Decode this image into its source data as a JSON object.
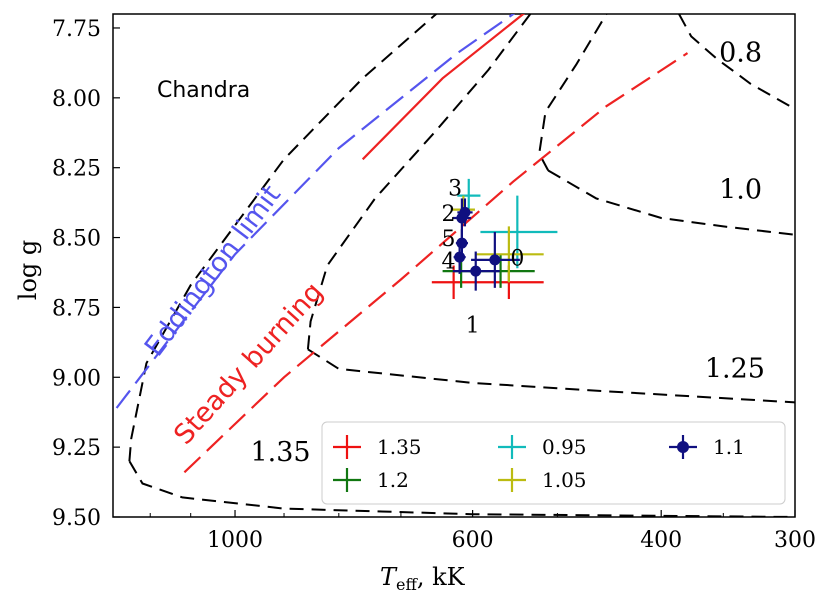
{
  "chart_data": {
    "type": "scatter",
    "title": "Chandra",
    "xlabel_main": "T",
    "xlabel_sub": "eff",
    "xlabel_unit": ", kK",
    "ylabel": "log g",
    "x_scale": "log-reversed",
    "xlim": [
      1300,
      300
    ],
    "ylim": [
      9.5,
      7.7
    ],
    "xticks": [
      1000,
      600,
      400,
      300
    ],
    "xtick_labels": [
      "1000",
      "600",
      "400",
      "300"
    ],
    "yticks": [
      7.75,
      8.0,
      8.25,
      8.5,
      8.75,
      9.0,
      9.25,
      9.5
    ],
    "ytick_labels": [
      "7.75",
      "8.00",
      "8.25",
      "8.50",
      "8.75",
      "9.00",
      "9.25",
      "9.50"
    ],
    "lines": [
      {
        "name": "Eddington limit",
        "color": "#5555ee",
        "dash": "long",
        "label": "Eddington limit",
        "points": [
          [
            1290,
            9.11
          ],
          [
            1150,
            8.86
          ],
          [
            1000,
            8.56
          ],
          [
            800,
            8.18
          ],
          [
            620,
            7.84
          ],
          [
            545,
            7.69
          ]
        ]
      },
      {
        "name": "Steady burning",
        "color": "#ee2222",
        "dash": "long",
        "label": "Steady burning",
        "points": [
          [
            1115,
            9.34
          ],
          [
            900,
            9.0
          ],
          [
            700,
            8.65
          ],
          [
            550,
            8.3
          ],
          [
            450,
            8.03
          ],
          [
            378,
            7.84
          ]
        ]
      },
      {
        "name": "Steady burning upper",
        "color": "#ee2222",
        "dash": "solid",
        "label": "",
        "points": [
          [
            760,
            8.22
          ],
          [
            640,
            7.93
          ],
          [
            530,
            7.68
          ]
        ]
      }
    ],
    "contours": [
      {
        "label": "1.35",
        "points": [
          [
            1255,
            9.3
          ],
          [
            1250,
            9.22
          ],
          [
            1210,
            8.95
          ],
          [
            1100,
            8.67
          ],
          [
            900,
            8.22
          ],
          [
            760,
            7.93
          ],
          [
            640,
            7.68
          ]
        ]
      },
      {
        "label": "1.35-lower",
        "points": [
          [
            1255,
            9.3
          ],
          [
            1220,
            9.38
          ],
          [
            1120,
            9.43
          ],
          [
            900,
            9.47
          ],
          [
            600,
            9.49
          ],
          [
            300,
            9.5
          ]
        ]
      },
      {
        "label": "1.25",
        "points": [
          [
            855,
            8.9
          ],
          [
            850,
            8.8
          ],
          [
            820,
            8.6
          ],
          [
            740,
            8.36
          ],
          [
            650,
            8.12
          ],
          [
            580,
            7.9
          ],
          [
            530,
            7.7
          ]
        ]
      },
      {
        "label": "1.25-lower",
        "points": [
          [
            855,
            8.9
          ],
          [
            800,
            8.97
          ],
          [
            600,
            9.02
          ],
          [
            450,
            9.05
          ],
          [
            300,
            9.09
          ]
        ]
      },
      {
        "label": "1.0",
        "points": [
          [
            510,
            8.26
          ],
          [
            520,
            8.2
          ],
          [
            513,
            8.05
          ],
          [
            480,
            7.88
          ],
          [
            450,
            7.7
          ]
        ]
      },
      {
        "label": "1.0-lower",
        "points": [
          [
            510,
            8.26
          ],
          [
            460,
            8.36
          ],
          [
            400,
            8.43
          ],
          [
            350,
            8.46
          ],
          [
            300,
            8.49
          ]
        ]
      },
      {
        "label": "0.8",
        "points": [
          [
            385,
            7.7
          ],
          [
            375,
            7.78
          ],
          [
            355,
            7.86
          ],
          [
            330,
            7.95
          ],
          [
            300,
            8.04
          ]
        ]
      }
    ],
    "contour_labels": [
      {
        "text": "0.8",
        "x": 322,
        "y": 7.87
      },
      {
        "text": "1.0",
        "x": 322,
        "y": 8.36
      },
      {
        "text": "1.25",
        "x": 320,
        "y": 9.0
      },
      {
        "text": "1.35",
        "x": 850,
        "y": 9.3
      }
    ],
    "series": [
      {
        "name": "1.35",
        "color": "#ee1111",
        "marker": "plus",
        "points": [
          {
            "x": 625,
            "y": 8.66,
            "xerr": 30,
            "yerr": 0.06
          },
          {
            "x": 555,
            "y": 8.66,
            "xerr": 40,
            "yerr": 0.06
          }
        ]
      },
      {
        "name": "1.2",
        "color": "#117711",
        "marker": "plus",
        "points": [
          {
            "x": 615,
            "y": 8.62,
            "xerr": 25,
            "yerr": 0.06
          },
          {
            "x": 565,
            "y": 8.62,
            "xerr": 40,
            "yerr": 0.06
          }
        ]
      },
      {
        "name": "0.95",
        "color": "#11bbbb",
        "marker": "plus",
        "points": [
          {
            "x": 605,
            "y": 8.35,
            "xerr": 15,
            "yerr": 0.06
          },
          {
            "x": 545,
            "y": 8.48,
            "xerr": 45,
            "yerr": 0.13
          }
        ]
      },
      {
        "name": "1.05",
        "color": "#bbbb11",
        "marker": "plus",
        "points": [
          {
            "x": 612,
            "y": 8.4,
            "xerr": 15,
            "yerr": 0.05
          },
          {
            "x": 555,
            "y": 8.56,
            "xerr": 40,
            "yerr": 0.1
          }
        ]
      },
      {
        "name": "1.1",
        "color": "#101080",
        "marker": "circle",
        "points": [
          {
            "x": 572,
            "y": 8.58,
            "xerr": 30,
            "yerr": 0.1,
            "label": "0"
          },
          {
            "x": 596,
            "y": 8.62,
            "xerr": 30,
            "yerr": 0.07,
            "label": "1"
          },
          {
            "x": 614,
            "y": 8.43,
            "xerr": 12,
            "yerr": 0.07,
            "label": "2"
          },
          {
            "x": 610,
            "y": 8.41,
            "xerr": 10,
            "yerr": 0.05,
            "label": "3"
          },
          {
            "x": 617,
            "y": 8.57,
            "xerr": 8,
            "yerr": 0.06,
            "label": "4"
          },
          {
            "x": 614,
            "y": 8.52,
            "xerr": 8,
            "yerr": 0.05,
            "label": "5"
          }
        ]
      }
    ],
    "point_labels": [
      {
        "text": "0",
        "x": 545,
        "y": 8.6
      },
      {
        "text": "1",
        "x": 600,
        "y": 8.84
      },
      {
        "text": "2",
        "x": 632,
        "y": 8.44
      },
      {
        "text": "3",
        "x": 623,
        "y": 8.35
      },
      {
        "text": "4",
        "x": 632,
        "y": 8.61
      },
      {
        "text": "5",
        "x": 632,
        "y": 8.53
      }
    ],
    "legend": {
      "position": "lower-right",
      "entries": [
        {
          "label": "1.35",
          "color": "#ee1111",
          "marker": "plus"
        },
        {
          "label": "1.2",
          "color": "#117711",
          "marker": "plus"
        },
        {
          "label": "0.95",
          "color": "#11bbbb",
          "marker": "plus"
        },
        {
          "label": "1.05",
          "color": "#bbbb11",
          "marker": "plus"
        },
        {
          "label": "1.1",
          "color": "#101080",
          "marker": "circle"
        }
      ]
    }
  }
}
